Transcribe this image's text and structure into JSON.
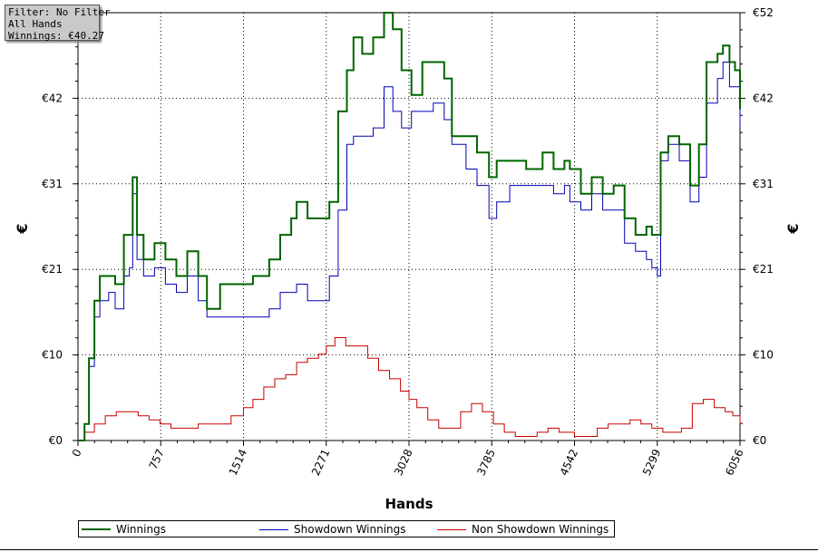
{
  "info": {
    "filter": "Filter: No Filter",
    "hands": "All Hands",
    "winnings": "Winnings: €40.27"
  },
  "chart_data": {
    "type": "line",
    "xlabel": "Hands",
    "ylabel_left": "€",
    "ylabel_right": "€",
    "xlim": [
      0,
      6056
    ],
    "ylim": [
      0,
      52
    ],
    "x_ticks": [
      "0",
      "757",
      "1514",
      "2271",
      "3028",
      "3785",
      "4542",
      "5299",
      "6056"
    ],
    "y_ticks": [
      "€0",
      "€10",
      "€21",
      "€31",
      "€42",
      "€52"
    ],
    "grid": true,
    "legend_position": "bottom",
    "series": [
      {
        "name": "Winnings",
        "color": "#006400",
        "points": [
          [
            0,
            0
          ],
          [
            60,
            2
          ],
          [
            100,
            10
          ],
          [
            150,
            17
          ],
          [
            200,
            20
          ],
          [
            280,
            20
          ],
          [
            340,
            19
          ],
          [
            420,
            25
          ],
          [
            470,
            25
          ],
          [
            500,
            32
          ],
          [
            540,
            25
          ],
          [
            600,
            22
          ],
          [
            700,
            24
          ],
          [
            800,
            22
          ],
          [
            900,
            20
          ],
          [
            1000,
            23
          ],
          [
            1100,
            20
          ],
          [
            1180,
            16
          ],
          [
            1300,
            19
          ],
          [
            1450,
            19
          ],
          [
            1600,
            20
          ],
          [
            1750,
            22
          ],
          [
            1850,
            25
          ],
          [
            1950,
            27
          ],
          [
            2000,
            29
          ],
          [
            2100,
            27
          ],
          [
            2200,
            27
          ],
          [
            2300,
            29
          ],
          [
            2380,
            40
          ],
          [
            2460,
            45
          ],
          [
            2520,
            49
          ],
          [
            2600,
            47
          ],
          [
            2700,
            49
          ],
          [
            2800,
            52
          ],
          [
            2880,
            50
          ],
          [
            2960,
            45
          ],
          [
            3050,
            42
          ],
          [
            3150,
            46
          ],
          [
            3250,
            46
          ],
          [
            3350,
            44
          ],
          [
            3420,
            37
          ],
          [
            3550,
            37
          ],
          [
            3650,
            35
          ],
          [
            3760,
            32
          ],
          [
            3830,
            34
          ],
          [
            3950,
            34
          ],
          [
            4100,
            33
          ],
          [
            4250,
            35
          ],
          [
            4350,
            33
          ],
          [
            4450,
            34
          ],
          [
            4500,
            33
          ],
          [
            4600,
            30
          ],
          [
            4700,
            32
          ],
          [
            4800,
            30
          ],
          [
            4900,
            31
          ],
          [
            5000,
            27
          ],
          [
            5100,
            25
          ],
          [
            5200,
            26
          ],
          [
            5250,
            25
          ],
          [
            5299,
            25
          ],
          [
            5330,
            35
          ],
          [
            5400,
            37
          ],
          [
            5500,
            36
          ],
          [
            5600,
            31
          ],
          [
            5680,
            36
          ],
          [
            5750,
            46
          ],
          [
            5850,
            47
          ],
          [
            5900,
            48
          ],
          [
            5960,
            46
          ],
          [
            6010,
            45
          ],
          [
            6056,
            40.27
          ]
        ]
      },
      {
        "name": "Showdown Winnings",
        "color": "#0000b4",
        "points": [
          [
            0,
            0
          ],
          [
            60,
            2
          ],
          [
            100,
            9
          ],
          [
            150,
            15
          ],
          [
            200,
            17
          ],
          [
            280,
            18
          ],
          [
            340,
            16
          ],
          [
            420,
            20
          ],
          [
            470,
            21
          ],
          [
            500,
            30
          ],
          [
            540,
            22
          ],
          [
            600,
            20
          ],
          [
            700,
            21
          ],
          [
            800,
            19
          ],
          [
            900,
            18
          ],
          [
            1000,
            20
          ],
          [
            1100,
            17
          ],
          [
            1180,
            15
          ],
          [
            1300,
            15
          ],
          [
            1450,
            15
          ],
          [
            1600,
            15
          ],
          [
            1750,
            16
          ],
          [
            1850,
            18
          ],
          [
            1950,
            18
          ],
          [
            2000,
            19
          ],
          [
            2100,
            17
          ],
          [
            2200,
            17
          ],
          [
            2300,
            20
          ],
          [
            2380,
            28
          ],
          [
            2460,
            36
          ],
          [
            2520,
            37
          ],
          [
            2600,
            37
          ],
          [
            2700,
            38
          ],
          [
            2800,
            43
          ],
          [
            2880,
            40
          ],
          [
            2960,
            38
          ],
          [
            3050,
            40
          ],
          [
            3150,
            40
          ],
          [
            3250,
            41
          ],
          [
            3350,
            39
          ],
          [
            3420,
            36
          ],
          [
            3550,
            33
          ],
          [
            3650,
            31
          ],
          [
            3760,
            27
          ],
          [
            3830,
            29
          ],
          [
            3950,
            31
          ],
          [
            4100,
            31
          ],
          [
            4250,
            31
          ],
          [
            4350,
            30
          ],
          [
            4450,
            31
          ],
          [
            4500,
            29
          ],
          [
            4600,
            28
          ],
          [
            4700,
            30
          ],
          [
            4800,
            28
          ],
          [
            4900,
            28
          ],
          [
            5000,
            24
          ],
          [
            5100,
            23
          ],
          [
            5200,
            22
          ],
          [
            5250,
            21
          ],
          [
            5299,
            20
          ],
          [
            5330,
            34
          ],
          [
            5400,
            36
          ],
          [
            5500,
            34
          ],
          [
            5600,
            29
          ],
          [
            5680,
            32
          ],
          [
            5750,
            41
          ],
          [
            5850,
            44
          ],
          [
            5900,
            46
          ],
          [
            5960,
            43
          ],
          [
            6010,
            43
          ],
          [
            6056,
            38
          ]
        ]
      },
      {
        "name": "Non Showdown Winnings",
        "color": "#c80000",
        "points": [
          [
            0,
            0
          ],
          [
            60,
            1
          ],
          [
            150,
            2
          ],
          [
            250,
            3
          ],
          [
            350,
            3.5
          ],
          [
            450,
            3.5
          ],
          [
            550,
            3
          ],
          [
            650,
            2.5
          ],
          [
            750,
            2
          ],
          [
            850,
            1.5
          ],
          [
            1000,
            1.5
          ],
          [
            1100,
            2
          ],
          [
            1250,
            2
          ],
          [
            1400,
            3
          ],
          [
            1514,
            4
          ],
          [
            1600,
            5
          ],
          [
            1700,
            6.5
          ],
          [
            1800,
            7.5
          ],
          [
            1900,
            8
          ],
          [
            2000,
            9.5
          ],
          [
            2100,
            10
          ],
          [
            2200,
            10.5
          ],
          [
            2271,
            11.5
          ],
          [
            2350,
            12.5
          ],
          [
            2450,
            11.5
          ],
          [
            2550,
            11.5
          ],
          [
            2650,
            10
          ],
          [
            2750,
            8.5
          ],
          [
            2850,
            7.5
          ],
          [
            2950,
            6
          ],
          [
            3028,
            5
          ],
          [
            3100,
            4
          ],
          [
            3200,
            2.5
          ],
          [
            3300,
            1.5
          ],
          [
            3400,
            1.5
          ],
          [
            3500,
            3.5
          ],
          [
            3600,
            4.5
          ],
          [
            3700,
            3.5
          ],
          [
            3800,
            2
          ],
          [
            3900,
            1
          ],
          [
            4000,
            0.5
          ],
          [
            4100,
            0.5
          ],
          [
            4200,
            1
          ],
          [
            4300,
            1.5
          ],
          [
            4400,
            1
          ],
          [
            4542,
            0.5
          ],
          [
            4650,
            0.5
          ],
          [
            4750,
            1.5
          ],
          [
            4850,
            2
          ],
          [
            4950,
            2
          ],
          [
            5050,
            2.5
          ],
          [
            5150,
            2
          ],
          [
            5250,
            1.5
          ],
          [
            5350,
            1
          ],
          [
            5450,
            1
          ],
          [
            5520,
            1.5
          ],
          [
            5620,
            4.5
          ],
          [
            5720,
            5
          ],
          [
            5820,
            4
          ],
          [
            5920,
            3.5
          ],
          [
            5990,
            3
          ],
          [
            6056,
            2
          ]
        ]
      }
    ]
  },
  "legend": {
    "winnings": "Winnings",
    "showdown": "Showdown Winnings",
    "non_showdown": "Non Showdown Winnings"
  }
}
